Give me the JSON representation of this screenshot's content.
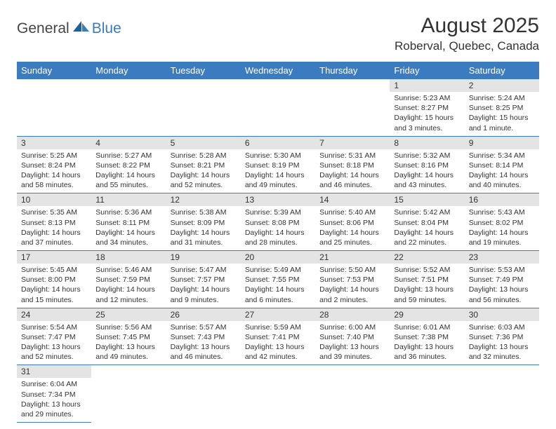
{
  "logo": {
    "word1": "General",
    "word2": "Blue"
  },
  "title": "August 2025",
  "location": "Roberval, Quebec, Canada",
  "colors": {
    "header_bg": "#3b7bbf",
    "header_fg": "#ffffff",
    "daynum_bg": "#e4e4e4",
    "border": "#3b7bbf",
    "logo_blue": "#3b7bbf"
  },
  "weekdays": [
    "Sunday",
    "Monday",
    "Tuesday",
    "Wednesday",
    "Thursday",
    "Friday",
    "Saturday"
  ],
  "weeks": [
    [
      null,
      null,
      null,
      null,
      null,
      {
        "n": "1",
        "sr": "5:23 AM",
        "ss": "8:27 PM",
        "dl": "15 hours and 3 minutes."
      },
      {
        "n": "2",
        "sr": "5:24 AM",
        "ss": "8:25 PM",
        "dl": "15 hours and 1 minute."
      }
    ],
    [
      {
        "n": "3",
        "sr": "5:25 AM",
        "ss": "8:24 PM",
        "dl": "14 hours and 58 minutes."
      },
      {
        "n": "4",
        "sr": "5:27 AM",
        "ss": "8:22 PM",
        "dl": "14 hours and 55 minutes."
      },
      {
        "n": "5",
        "sr": "5:28 AM",
        "ss": "8:21 PM",
        "dl": "14 hours and 52 minutes."
      },
      {
        "n": "6",
        "sr": "5:30 AM",
        "ss": "8:19 PM",
        "dl": "14 hours and 49 minutes."
      },
      {
        "n": "7",
        "sr": "5:31 AM",
        "ss": "8:18 PM",
        "dl": "14 hours and 46 minutes."
      },
      {
        "n": "8",
        "sr": "5:32 AM",
        "ss": "8:16 PM",
        "dl": "14 hours and 43 minutes."
      },
      {
        "n": "9",
        "sr": "5:34 AM",
        "ss": "8:14 PM",
        "dl": "14 hours and 40 minutes."
      }
    ],
    [
      {
        "n": "10",
        "sr": "5:35 AM",
        "ss": "8:13 PM",
        "dl": "14 hours and 37 minutes."
      },
      {
        "n": "11",
        "sr": "5:36 AM",
        "ss": "8:11 PM",
        "dl": "14 hours and 34 minutes."
      },
      {
        "n": "12",
        "sr": "5:38 AM",
        "ss": "8:09 PM",
        "dl": "14 hours and 31 minutes."
      },
      {
        "n": "13",
        "sr": "5:39 AM",
        "ss": "8:08 PM",
        "dl": "14 hours and 28 minutes."
      },
      {
        "n": "14",
        "sr": "5:40 AM",
        "ss": "8:06 PM",
        "dl": "14 hours and 25 minutes."
      },
      {
        "n": "15",
        "sr": "5:42 AM",
        "ss": "8:04 PM",
        "dl": "14 hours and 22 minutes."
      },
      {
        "n": "16",
        "sr": "5:43 AM",
        "ss": "8:02 PM",
        "dl": "14 hours and 19 minutes."
      }
    ],
    [
      {
        "n": "17",
        "sr": "5:45 AM",
        "ss": "8:00 PM",
        "dl": "14 hours and 15 minutes."
      },
      {
        "n": "18",
        "sr": "5:46 AM",
        "ss": "7:59 PM",
        "dl": "14 hours and 12 minutes."
      },
      {
        "n": "19",
        "sr": "5:47 AM",
        "ss": "7:57 PM",
        "dl": "14 hours and 9 minutes."
      },
      {
        "n": "20",
        "sr": "5:49 AM",
        "ss": "7:55 PM",
        "dl": "14 hours and 6 minutes."
      },
      {
        "n": "21",
        "sr": "5:50 AM",
        "ss": "7:53 PM",
        "dl": "14 hours and 2 minutes."
      },
      {
        "n": "22",
        "sr": "5:52 AM",
        "ss": "7:51 PM",
        "dl": "13 hours and 59 minutes."
      },
      {
        "n": "23",
        "sr": "5:53 AM",
        "ss": "7:49 PM",
        "dl": "13 hours and 56 minutes."
      }
    ],
    [
      {
        "n": "24",
        "sr": "5:54 AM",
        "ss": "7:47 PM",
        "dl": "13 hours and 52 minutes."
      },
      {
        "n": "25",
        "sr": "5:56 AM",
        "ss": "7:45 PM",
        "dl": "13 hours and 49 minutes."
      },
      {
        "n": "26",
        "sr": "5:57 AM",
        "ss": "7:43 PM",
        "dl": "13 hours and 46 minutes."
      },
      {
        "n": "27",
        "sr": "5:59 AM",
        "ss": "7:41 PM",
        "dl": "13 hours and 42 minutes."
      },
      {
        "n": "28",
        "sr": "6:00 AM",
        "ss": "7:40 PM",
        "dl": "13 hours and 39 minutes."
      },
      {
        "n": "29",
        "sr": "6:01 AM",
        "ss": "7:38 PM",
        "dl": "13 hours and 36 minutes."
      },
      {
        "n": "30",
        "sr": "6:03 AM",
        "ss": "7:36 PM",
        "dl": "13 hours and 32 minutes."
      }
    ],
    [
      {
        "n": "31",
        "sr": "6:04 AM",
        "ss": "7:34 PM",
        "dl": "13 hours and 29 minutes."
      },
      null,
      null,
      null,
      null,
      null,
      null
    ]
  ],
  "labels": {
    "sunrise": "Sunrise: ",
    "sunset": "Sunset: ",
    "daylight": "Daylight: "
  }
}
